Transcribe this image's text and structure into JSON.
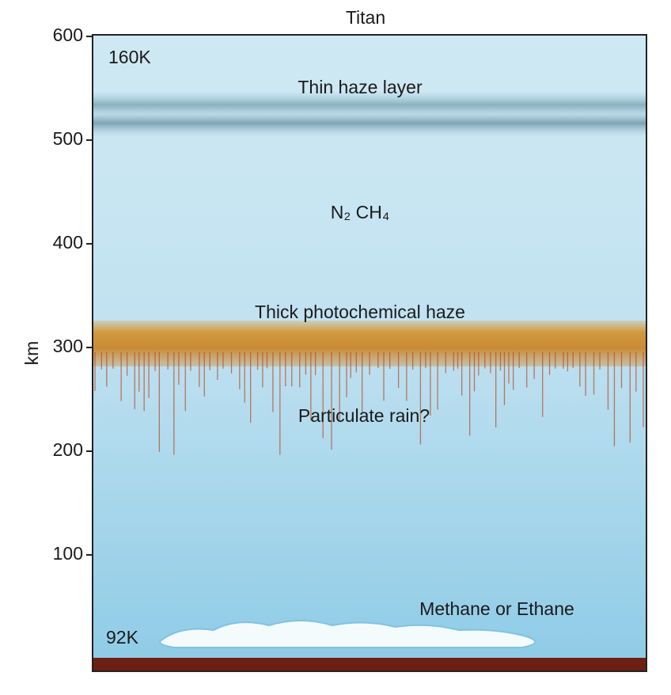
{
  "title": "Titan",
  "axis": {
    "label": "km",
    "lim": [
      0,
      600
    ],
    "ticks": [
      100,
      200,
      300,
      400,
      500,
      600
    ]
  },
  "annotations": {
    "top_temperature": "160K",
    "thin_haze": "Thin haze layer",
    "gases": "N₂  CH₄",
    "thick_haze": "Thick photochemical haze",
    "rain": "Particulate rain?",
    "clouds": "Methane or Ethane",
    "bottom_temperature": "92K"
  }
}
